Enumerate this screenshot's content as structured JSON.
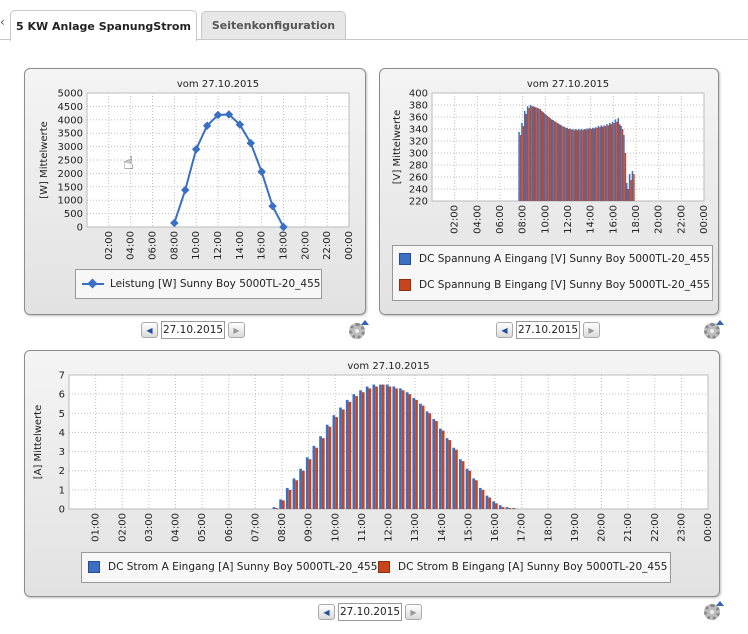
{
  "tabs": [
    {
      "label": "5 KW Anlage SpanungStrom"
    },
    {
      "label": "Seitenkonfiguration"
    }
  ],
  "colors": {
    "seriesA": "#3a6fc4",
    "seriesB": "#c8441c",
    "line": "#3a6fc4"
  },
  "charts": {
    "power": {
      "title": "vom 27.10.2015",
      "ylabel": "[W] Mittelwerte",
      "legend": "Leistung [W]  Sunny Boy 5000TL-20_455",
      "date": "27.10.2015",
      "yticks": [
        "0",
        "500",
        "1000",
        "1500",
        "2000",
        "2500",
        "3000",
        "3500",
        "4000",
        "4500",
        "5000"
      ],
      "xticks": [
        "02:00",
        "04:00",
        "06:00",
        "08:00",
        "10:00",
        "12:00",
        "14:00",
        "16:00",
        "18:00",
        "20:00",
        "22:00",
        "00:00"
      ]
    },
    "voltage": {
      "title": "vom 27.10.2015",
      "ylabel": "[V] Mittelwerte",
      "legendA": "DC Spannung A Eingang [V]  Sunny Boy 5000TL-20_455",
      "legendB": "DC Spannung B Eingang [V]  Sunny Boy 5000TL-20_455",
      "date": "27.10.2015",
      "yticks": [
        "220",
        "240",
        "260",
        "280",
        "300",
        "320",
        "340",
        "360",
        "380",
        "400"
      ],
      "xticks": [
        "02:00",
        "04:00",
        "06:00",
        "08:00",
        "10:00",
        "12:00",
        "14:00",
        "16:00",
        "18:00",
        "20:00",
        "22:00",
        "00:00"
      ]
    },
    "current": {
      "title": "vom 27.10.2015",
      "ylabel": "[A] Mittelwerte",
      "legendA": "DC Strom A Eingang [A]  Sunny Boy 5000TL-20_455",
      "legendB": "DC Strom B Eingang [A]  Sunny Boy 5000TL-20_455",
      "date": "27.10.2015",
      "yticks": [
        "0",
        "1",
        "2",
        "3",
        "4",
        "5",
        "6",
        "7"
      ],
      "xticks": [
        "01:00",
        "02:00",
        "03:00",
        "04:00",
        "05:00",
        "06:00",
        "07:00",
        "08:00",
        "09:00",
        "10:00",
        "11:00",
        "12:00",
        "13:00",
        "14:00",
        "15:00",
        "16:00",
        "17:00",
        "18:00",
        "19:00",
        "20:00",
        "21:00",
        "22:00",
        "23:00",
        "00:00"
      ]
    }
  },
  "chart_data": [
    {
      "type": "line",
      "title": "vom 27.10.2015",
      "ylabel": "[W] Mittelwerte",
      "x_hours": [
        8,
        9,
        10,
        11,
        12,
        13,
        14,
        15,
        16,
        17,
        18
      ],
      "series": [
        {
          "name": "Leistung [W]  Sunny Boy 5000TL-20_455",
          "values": [
            150,
            1380,
            2900,
            3780,
            4180,
            4200,
            3820,
            3130,
            2060,
            780,
            0
          ]
        }
      ],
      "ylim": [
        0,
        5000
      ],
      "grid": true
    },
    {
      "type": "bar",
      "title": "vom 27.10.2015",
      "ylabel": "[V] Mittelwerte",
      "x_hours": [
        7.75,
        8.0,
        8.25,
        8.5,
        8.75,
        9.0,
        9.25,
        9.5,
        9.75,
        10.0,
        10.25,
        10.5,
        10.75,
        11.0,
        11.25,
        11.5,
        11.75,
        12.0,
        12.25,
        12.5,
        12.75,
        13.0,
        13.25,
        13.5,
        13.75,
        14.0,
        14.25,
        14.5,
        14.75,
        15.0,
        15.25,
        15.5,
        15.75,
        16.0,
        16.25,
        16.5,
        16.75,
        17.0,
        17.25,
        17.5,
        17.75
      ],
      "series": [
        {
          "name": "DC Spannung A Eingang [V]  Sunny Boy 5000TL-20_455",
          "values": [
            335,
            350,
            370,
            378,
            380,
            378,
            376,
            374,
            370,
            366,
            362,
            358,
            355,
            352,
            349,
            346,
            344,
            342,
            341,
            340,
            340,
            340,
            340,
            340,
            341,
            342,
            342,
            343,
            345,
            346,
            346,
            348,
            350,
            352,
            356,
            358,
            345,
            330,
            250,
            265,
            270
          ]
        },
        {
          "name": "DC Spannung B Eingang [V]  Sunny Boy 5000TL-20_455",
          "values": [
            330,
            345,
            365,
            375,
            378,
            377,
            375,
            373,
            368,
            364,
            360,
            356,
            353,
            350,
            347,
            344,
            342,
            340,
            339,
            338,
            338,
            338,
            338,
            339,
            340,
            340,
            341,
            342,
            343,
            344,
            345,
            346,
            348,
            350,
            352,
            348,
            340,
            300,
            240,
            255,
            265
          ]
        }
      ],
      "ylim": [
        220,
        400
      ],
      "grid": true
    },
    {
      "type": "bar",
      "title": "vom 27.10.2015",
      "ylabel": "[A] Mittelwerte",
      "x_hours": [
        7.75,
        8.0,
        8.25,
        8.5,
        8.75,
        9.0,
        9.25,
        9.5,
        9.75,
        10.0,
        10.25,
        10.5,
        10.75,
        11.0,
        11.25,
        11.5,
        11.75,
        12.0,
        12.25,
        12.5,
        12.75,
        13.0,
        13.25,
        13.5,
        13.75,
        14.0,
        14.25,
        14.5,
        14.75,
        15.0,
        15.25,
        15.5,
        15.75,
        16.0,
        16.25,
        16.5,
        16.75,
        17.0,
        17.25,
        17.5
      ],
      "series": [
        {
          "name": "DC Strom A Eingang [A]  Sunny Boy 5000TL-20_455",
          "values": [
            0.1,
            0.5,
            1.1,
            1.6,
            2.1,
            2.7,
            3.3,
            3.8,
            4.4,
            4.9,
            5.3,
            5.7,
            6.0,
            6.2,
            6.4,
            6.5,
            6.5,
            6.5,
            6.4,
            6.3,
            6.1,
            5.8,
            5.5,
            5.1,
            4.7,
            4.2,
            3.7,
            3.2,
            2.6,
            2.1,
            1.6,
            1.1,
            0.7,
            0.4,
            0.2,
            0.1,
            0.05,
            0.0,
            0.0,
            0.0
          ]
        },
        {
          "name": "DC Strom B Eingang [A]  Sunny Boy 5000TL-20_455",
          "values": [
            0.05,
            0.45,
            1.0,
            1.5,
            2.0,
            2.6,
            3.2,
            3.7,
            4.3,
            4.8,
            5.2,
            5.6,
            5.9,
            6.1,
            6.3,
            6.4,
            6.5,
            6.4,
            6.3,
            6.2,
            6.0,
            5.7,
            5.4,
            5.0,
            4.6,
            4.1,
            3.6,
            3.1,
            2.5,
            2.0,
            1.5,
            1.0,
            0.6,
            0.3,
            0.1,
            0.05,
            0.02,
            0.0,
            0.0,
            0.0
          ]
        }
      ],
      "ylim": [
        0,
        7
      ],
      "grid": true
    }
  ]
}
